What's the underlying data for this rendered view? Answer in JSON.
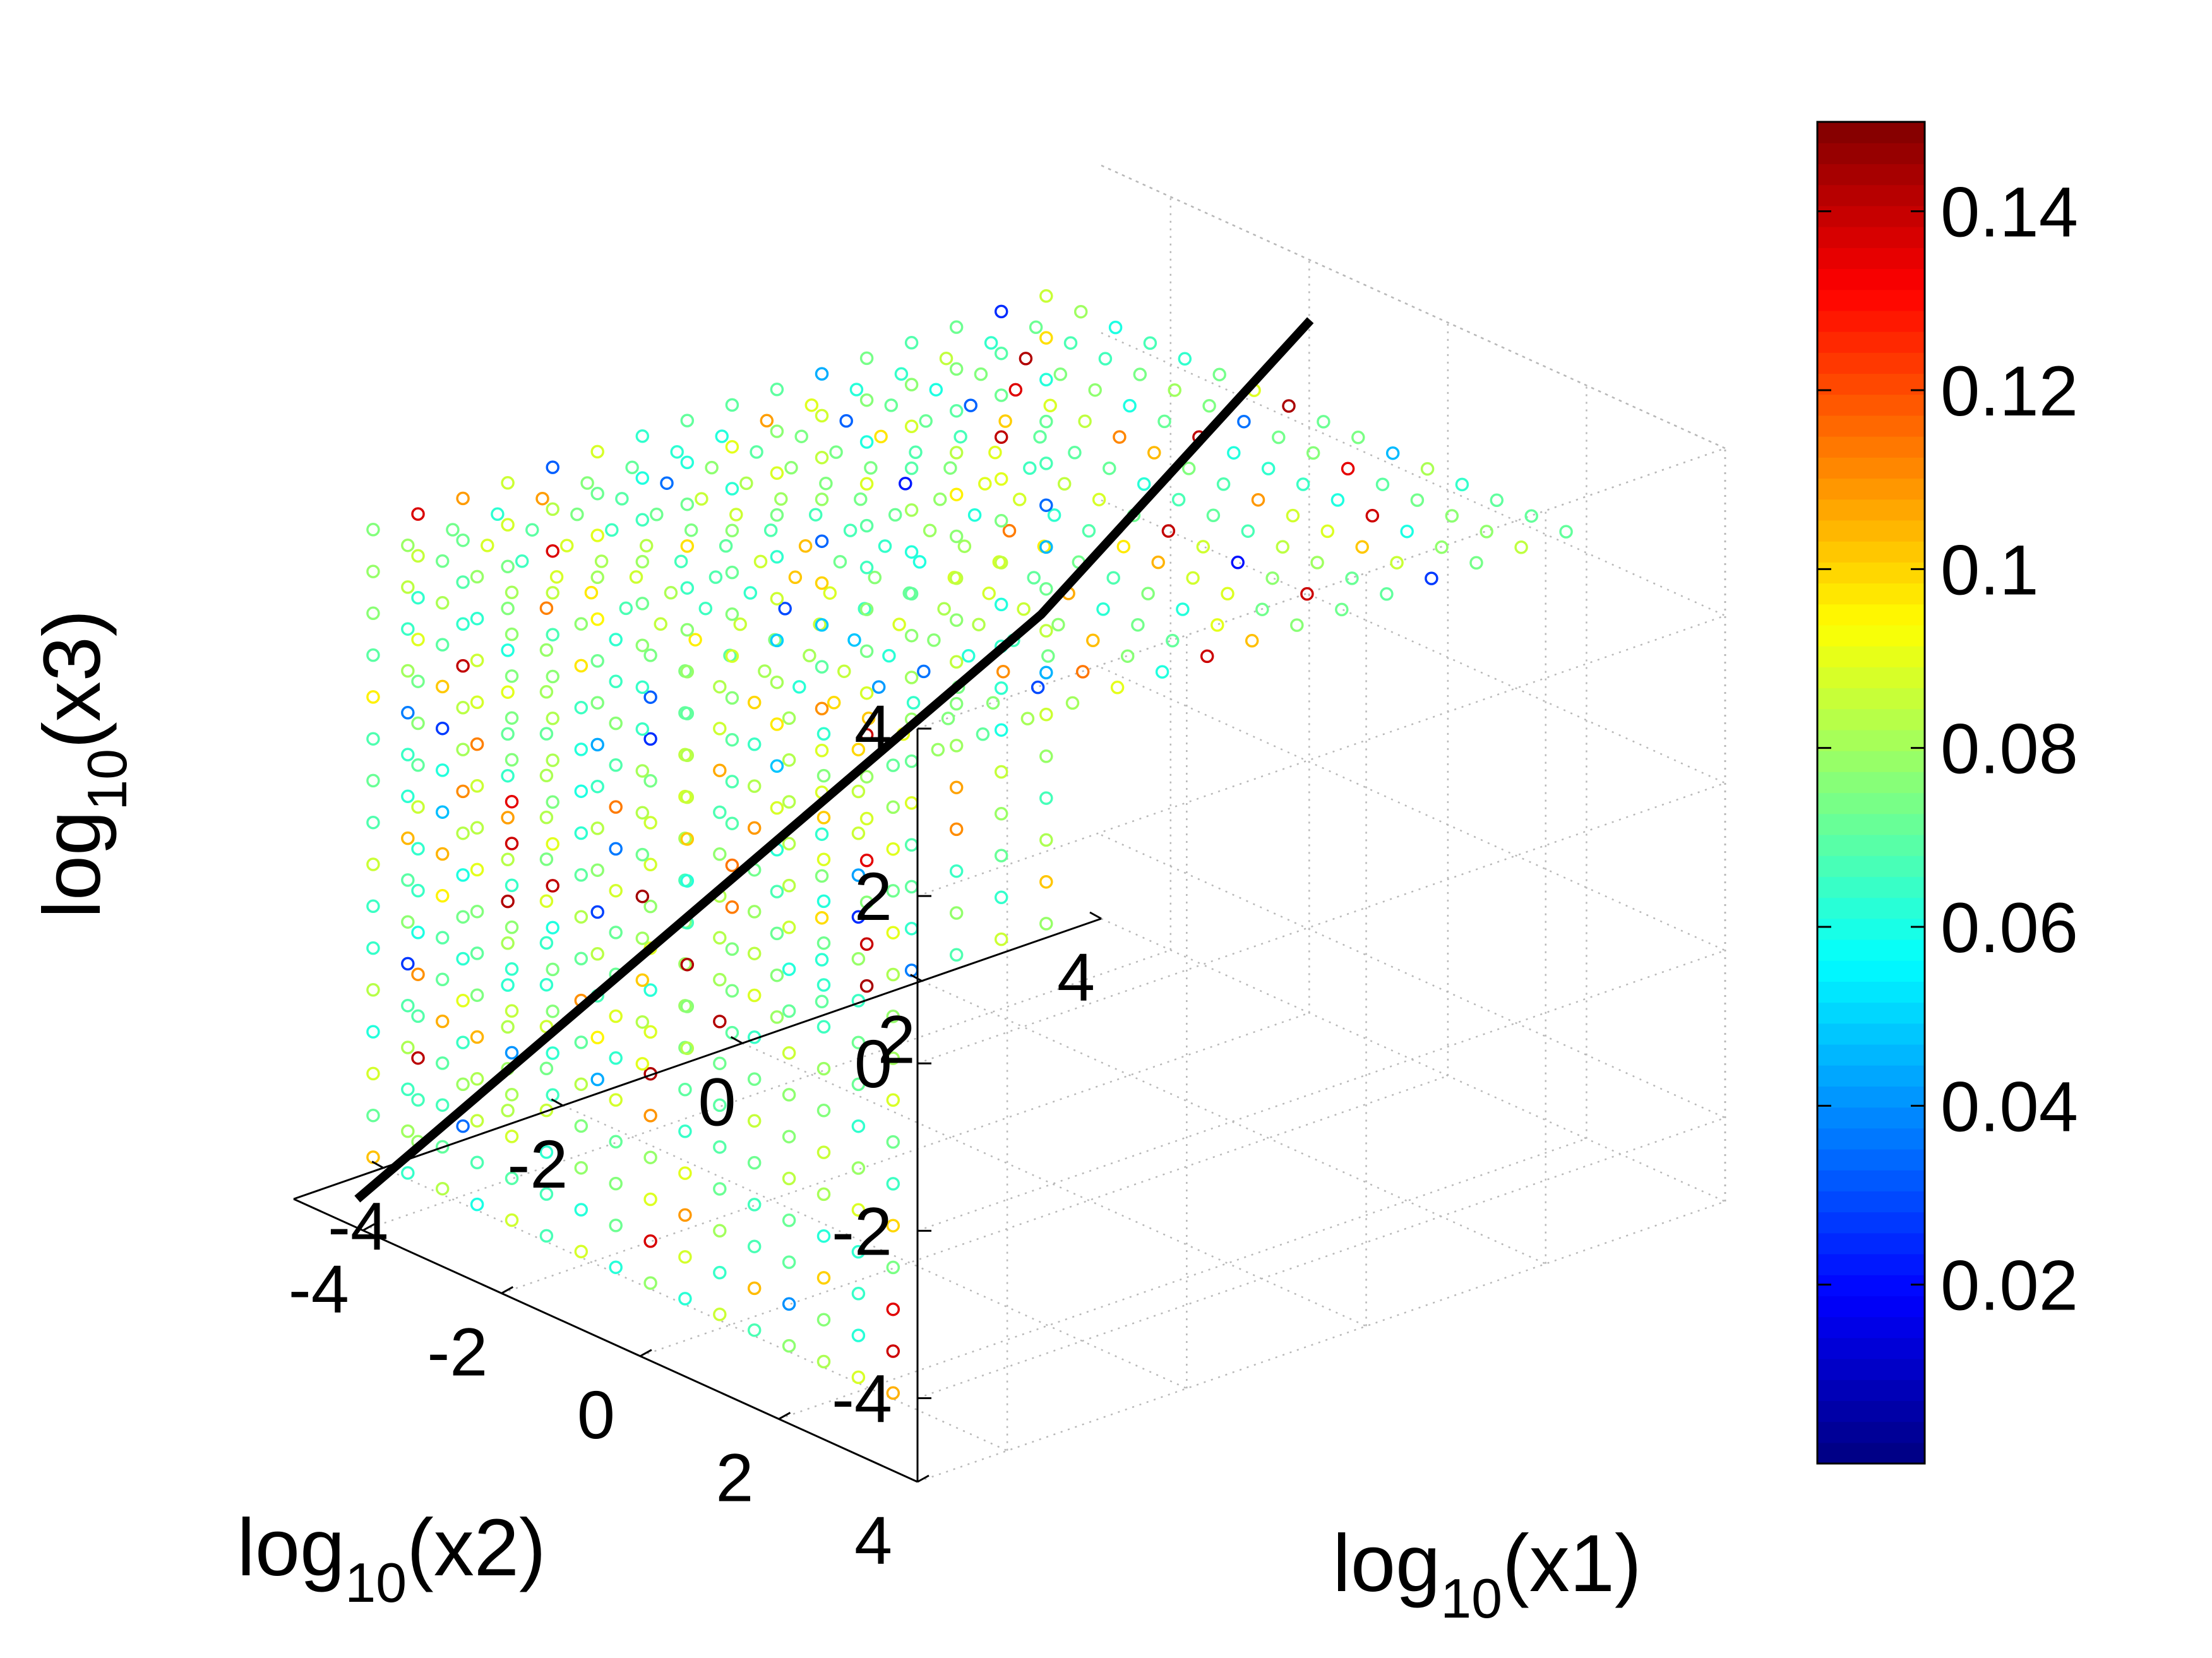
{
  "chart_data": {
    "type": "scatter",
    "subtype": "scatter3d",
    "title": "",
    "axes": {
      "x": {
        "label": "log10(x1)",
        "label_base": "log",
        "label_sub": "10",
        "label_arg": "(x1)",
        "range": [
          -5,
          4
        ],
        "ticks": [
          "-4",
          "-2",
          "0",
          "2",
          "4"
        ],
        "tick_values": [
          -4,
          -2,
          0,
          2,
          4
        ]
      },
      "y": {
        "label": "log10(x2)",
        "label_base": "log",
        "label_sub": "10",
        "label_arg": "(x2)",
        "range": [
          -5,
          4
        ],
        "ticks": [
          "4",
          "2",
          "0",
          "-2",
          "-4"
        ],
        "tick_values": [
          4,
          2,
          0,
          -2,
          -4
        ]
      },
      "z": {
        "label": "log10(x3)",
        "label_base": "log",
        "label_sub": "10",
        "label_arg": "(x3)",
        "range": [
          -5,
          4
        ],
        "ticks": [
          "4",
          "2",
          "0",
          "-2",
          "-4"
        ],
        "tick_values": [
          4,
          2,
          0,
          -2,
          -4
        ]
      }
    },
    "grid": true,
    "points": {
      "grid_start": -4.5,
      "grid_end": 3,
      "grid_step": 0.5,
      "marker": "circle",
      "value_range": [
        0.0,
        0.15
      ],
      "value_note": "colour-coded value per point, typically 0.06-0.09 with outliers near 0.02 and 0.14"
    },
    "line": {
      "color": "#000000",
      "points": [
        {
          "x": -4.6,
          "y": -4.6,
          "z": -5.0
        },
        {
          "x": -0.3,
          "y": -0.3,
          "z": 2.0
        },
        {
          "x": 2.7,
          "y": -0.3,
          "z": 4.4
        }
      ]
    },
    "colorbar": {
      "colormap": "jet",
      "range": [
        0.0,
        0.15
      ],
      "ticks": [
        "0.02",
        "0.04",
        "0.06",
        "0.08",
        "0.1",
        "0.12",
        "0.14"
      ],
      "tick_values": [
        0.02,
        0.04,
        0.06,
        0.08,
        0.1,
        0.12,
        0.14
      ]
    }
  }
}
